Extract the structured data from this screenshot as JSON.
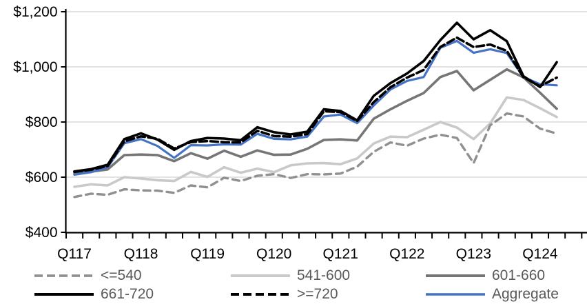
{
  "chart_data": {
    "type": "line",
    "title": "",
    "xlabel": "",
    "ylabel": "",
    "ylim": [
      400,
      1200
    ],
    "grid": "horizontal",
    "legend_position": "bottom",
    "y_ticks": [
      {
        "value": 400,
        "label": "$400"
      },
      {
        "value": 600,
        "label": "$600"
      },
      {
        "value": 800,
        "label": "$800"
      },
      {
        "value": 1000,
        "label": "$1,000"
      },
      {
        "value": 1200,
        "label": "$1,200"
      }
    ],
    "x_axis": {
      "unit": "quarter",
      "n_points": 30,
      "first_point": "Q1 2017",
      "last_point": "Q2 2024",
      "label_step": 4,
      "visible_labels": [
        "Q117",
        "Q118",
        "Q119",
        "Q120",
        "Q121",
        "Q122",
        "Q123",
        "Q124"
      ]
    },
    "series": [
      {
        "name": "<=540",
        "color": "#909090",
        "dashed": true,
        "line_width": 3.4,
        "values": [
          528,
          540,
          536,
          556,
          552,
          551,
          543,
          570,
          563,
          598,
          586,
          605,
          611,
          597,
          611,
          610,
          613,
          638,
          692,
          726,
          714,
          740,
          754,
          742,
          651,
          788,
          831,
          820,
          776,
          758
        ]
      },
      {
        "name": "541-600",
        "color": "#C9C9C9",
        "dashed": false,
        "line_width": 3.6,
        "values": [
          565,
          574,
          570,
          600,
          595,
          589,
          586,
          619,
          601,
          636,
          616,
          631,
          618,
          643,
          650,
          651,
          647,
          668,
          722,
          747,
          745,
          772,
          800,
          780,
          738,
          795,
          889,
          880,
          850,
          818
        ]
      },
      {
        "name": "601-660",
        "color": "#767676",
        "dashed": false,
        "line_width": 3.6,
        "values": [
          612,
          620,
          628,
          680,
          682,
          680,
          658,
          687,
          667,
          696,
          674,
          697,
          681,
          682,
          703,
          735,
          737,
          733,
          812,
          846,
          877,
          905,
          963,
          985,
          915,
          953,
          991,
          962,
          906,
          848
        ]
      },
      {
        "name": "661-720",
        "color": "#000000",
        "dashed": false,
        "line_width": 3.6,
        "values": [
          621,
          629,
          645,
          738,
          759,
          736,
          699,
          731,
          742,
          740,
          734,
          781,
          763,
          755,
          765,
          846,
          840,
          806,
          895,
          941,
          976,
          1021,
          1097,
          1160,
          1100,
          1133,
          1093,
          966,
          927,
          1017
        ]
      },
      {
        "name": ">=720",
        "color": "#000000",
        "dashed": true,
        "line_width": 3.6,
        "values": [
          619,
          627,
          641,
          730,
          748,
          739,
          704,
          727,
          731,
          727,
          726,
          768,
          749,
          747,
          756,
          839,
          836,
          804,
          872,
          926,
          961,
          989,
          1072,
          1106,
          1072,
          1081,
          1058,
          962,
          930,
          961
        ]
      },
      {
        "name": "Aggregate",
        "color": "#4472C4",
        "dashed": false,
        "line_width": 3.2,
        "values": [
          609,
          618,
          636,
          723,
          738,
          713,
          670,
          716,
          715,
          719,
          718,
          757,
          739,
          737,
          747,
          820,
          827,
          796,
          860,
          918,
          949,
          963,
          1069,
          1094,
          1051,
          1064,
          1050,
          963,
          937,
          933
        ]
      }
    ],
    "colors": {
      "axis": "#000000",
      "gridline": "#D9D9D9",
      "axis_label_text": "#000000",
      "legend_text": "#595959",
      "accent_blue": "#4472C4"
    }
  }
}
